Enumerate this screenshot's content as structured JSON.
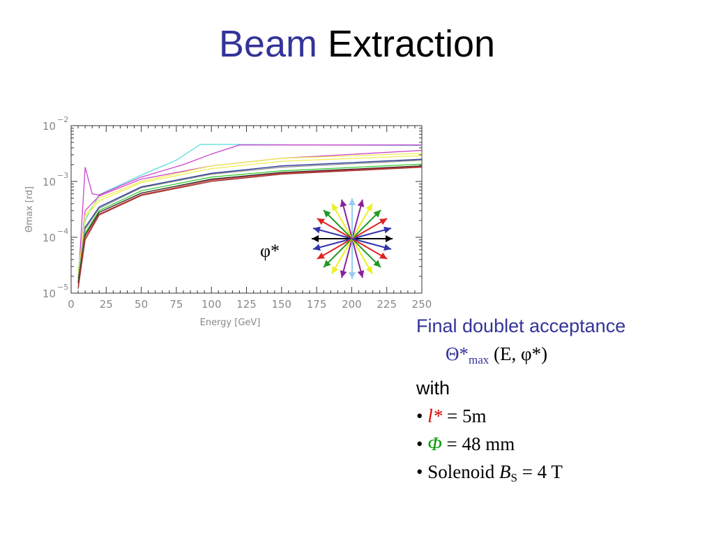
{
  "slide": {
    "title_part1": "Beam",
    "title_part2": "Extraction",
    "phi_label": "φ*",
    "acceptance_line": "Final doublet acceptance",
    "theta_symbol": "Θ*",
    "theta_subscript": "max",
    "theta_args": "(E, φ*)",
    "with_label": "with",
    "bullet1_symbol": "l*",
    "bullet1_value": "= 5m",
    "bullet2_symbol": "Φ",
    "bullet2_value": "= 48 mm",
    "bullet3_text": "Solenoid",
    "bullet3_symbol": "B",
    "bullet3_sub": "S",
    "bullet3_value": "= 4 T",
    "bullet_glyph": "•"
  },
  "colors": {
    "title_blue": "#333399",
    "red": "#dd0000",
    "green": "#009900"
  },
  "chart_data": {
    "type": "line",
    "xlabel": "Energy   [GeV]",
    "ylabel": "Θmax  [rd]",
    "xlim": [
      0,
      250
    ],
    "ylim": [
      1e-05,
      0.01
    ],
    "y_scale": "log",
    "x_ticks": [
      0,
      25,
      50,
      75,
      100,
      125,
      150,
      175,
      200,
      225,
      250
    ],
    "y_ticks": [
      1e-05,
      0.0001,
      0.001,
      0.01
    ],
    "y_tick_labels": [
      {
        "base": "10",
        "exp": "−5"
      },
      {
        "base": "10",
        "exp": "−4"
      },
      {
        "base": "10",
        "exp": "−3"
      },
      {
        "base": "10",
        "exp": "−2"
      }
    ],
    "series": [
      {
        "color": "#55dddd",
        "points": [
          [
            5,
            2.5e-05
          ],
          [
            10,
            0.0002
          ],
          [
            20,
            0.00058
          ],
          [
            50,
            0.0013
          ],
          [
            75,
            0.0024
          ],
          [
            92,
            0.0046
          ],
          [
            120,
            0.0046
          ],
          [
            250,
            0.0044
          ]
        ]
      },
      {
        "color": "#cc44cc",
        "points": [
          [
            5,
            1.5e-05
          ],
          [
            10,
            0.0018
          ],
          [
            15,
            0.0006
          ],
          [
            20,
            0.00057
          ],
          [
            50,
            0.0012
          ],
          [
            80,
            0.002
          ],
          [
            100,
            0.0031
          ],
          [
            120,
            0.0045
          ],
          [
            250,
            0.0045
          ]
        ]
      },
      {
        "color": "#cc44cc",
        "points": [
          [
            5,
            2e-05
          ],
          [
            10,
            0.0003
          ],
          [
            20,
            0.00055
          ],
          [
            50,
            0.0011
          ],
          [
            100,
            0.0019
          ],
          [
            150,
            0.0026
          ],
          [
            250,
            0.0036
          ]
        ]
      },
      {
        "color": "#eeee55",
        "points": [
          [
            5,
            2.2e-05
          ],
          [
            10,
            0.00025
          ],
          [
            20,
            0.0005
          ],
          [
            50,
            0.001
          ],
          [
            100,
            0.0019
          ],
          [
            150,
            0.0026
          ],
          [
            250,
            0.0032
          ]
        ]
      },
      {
        "color": "#eeee55",
        "points": [
          [
            5,
            2e-05
          ],
          [
            10,
            0.00023
          ],
          [
            20,
            0.00045
          ],
          [
            50,
            0.00095
          ],
          [
            100,
            0.0017
          ],
          [
            150,
            0.0023
          ],
          [
            250,
            0.0029
          ]
        ]
      },
      {
        "color": "#223399",
        "points": [
          [
            5,
            1.8e-05
          ],
          [
            10,
            0.00015
          ],
          [
            20,
            0.00035
          ],
          [
            50,
            0.0008
          ],
          [
            100,
            0.0014
          ],
          [
            150,
            0.0019
          ],
          [
            250,
            0.0025
          ]
        ]
      },
      {
        "color": "#888888",
        "points": [
          [
            5,
            1.8e-05
          ],
          [
            10,
            0.00014
          ],
          [
            20,
            0.00033
          ],
          [
            50,
            0.00077
          ],
          [
            100,
            0.00135
          ],
          [
            150,
            0.0018
          ],
          [
            250,
            0.0024
          ]
        ]
      },
      {
        "color": "#33cc33",
        "points": [
          [
            5,
            1.6e-05
          ],
          [
            10,
            0.00012
          ],
          [
            20,
            0.0003
          ],
          [
            50,
            0.00068
          ],
          [
            100,
            0.0012
          ],
          [
            150,
            0.00155
          ],
          [
            250,
            0.00205
          ]
        ]
      },
      {
        "color": "#222222",
        "points": [
          [
            5,
            1.5e-05
          ],
          [
            10,
            0.00011
          ],
          [
            20,
            0.00028
          ],
          [
            50,
            0.00062
          ],
          [
            100,
            0.0011
          ],
          [
            150,
            0.00145
          ],
          [
            250,
            0.0019
          ]
        ]
      },
      {
        "color": "#cc3333",
        "points": [
          [
            5,
            1.3e-05
          ],
          [
            10,
            0.0001
          ],
          [
            20,
            0.00026
          ],
          [
            50,
            0.00058
          ],
          [
            100,
            0.00105
          ],
          [
            150,
            0.0014
          ],
          [
            250,
            0.00185
          ]
        ]
      },
      {
        "color": "#993333",
        "points": [
          [
            5,
            1.2e-05
          ],
          [
            10,
            9e-05
          ],
          [
            20,
            0.00025
          ],
          [
            50,
            0.00056
          ],
          [
            100,
            0.001
          ],
          [
            150,
            0.00135
          ],
          [
            250,
            0.0018
          ]
        ]
      }
    ]
  },
  "rosette_arrows": [
    {
      "angle": 0,
      "color": "#000000"
    },
    {
      "angle": 15,
      "color": "#3333aa"
    },
    {
      "angle": 30,
      "color": "#dd2222"
    },
    {
      "angle": 45,
      "color": "#229922"
    },
    {
      "angle": 60,
      "color": "#eeee22"
    },
    {
      "angle": 75,
      "color": "#882299"
    },
    {
      "angle": 90,
      "color": "#99ccee"
    },
    {
      "angle": 105,
      "color": "#882299"
    },
    {
      "angle": 120,
      "color": "#eeee22"
    },
    {
      "angle": 135,
      "color": "#229922"
    },
    {
      "angle": 150,
      "color": "#dd2222"
    },
    {
      "angle": 165,
      "color": "#3333aa"
    },
    {
      "angle": 180,
      "color": "#000000"
    },
    {
      "angle": 195,
      "color": "#3333aa"
    },
    {
      "angle": 210,
      "color": "#dd2222"
    },
    {
      "angle": 225,
      "color": "#229922"
    },
    {
      "angle": 240,
      "color": "#eeee22"
    },
    {
      "angle": 255,
      "color": "#882299"
    },
    {
      "angle": 270,
      "color": "#99ccee"
    },
    {
      "angle": 285,
      "color": "#882299"
    },
    {
      "angle": 300,
      "color": "#eeee22"
    },
    {
      "angle": 315,
      "color": "#229922"
    },
    {
      "angle": 330,
      "color": "#dd2222"
    },
    {
      "angle": 345,
      "color": "#3333aa"
    }
  ]
}
